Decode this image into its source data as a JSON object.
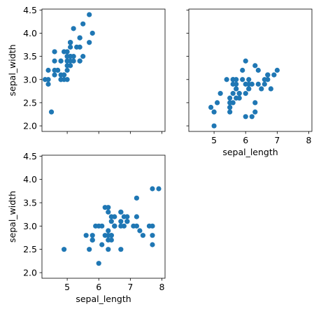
{
  "chart_data": [
    {
      "type": "scatter",
      "panel": "top-left",
      "xlabel": "",
      "ylabel": "sepal_width",
      "xlim": [
        4.2,
        8.1
      ],
      "ylim": [
        1.88,
        4.52
      ],
      "xticks": [
        5,
        6,
        7,
        8
      ],
      "yticks": [
        2.0,
        2.5,
        3.0,
        3.5,
        4.0,
        4.5
      ],
      "show_xtick_labels": false,
      "show_ytick_labels": true,
      "color": "#1f77b4",
      "points": [
        [
          5.1,
          3.5
        ],
        [
          4.9,
          3.0
        ],
        [
          4.7,
          3.2
        ],
        [
          4.6,
          3.1
        ],
        [
          5.0,
          3.6
        ],
        [
          5.4,
          3.9
        ],
        [
          4.6,
          3.4
        ],
        [
          5.0,
          3.4
        ],
        [
          4.4,
          2.9
        ],
        [
          4.9,
          3.1
        ],
        [
          5.4,
          3.7
        ],
        [
          4.8,
          3.4
        ],
        [
          4.8,
          3.0
        ],
        [
          4.3,
          3.0
        ],
        [
          5.8,
          4.0
        ],
        [
          5.7,
          4.4
        ],
        [
          5.4,
          3.9
        ],
        [
          5.1,
          3.5
        ],
        [
          5.7,
          3.8
        ],
        [
          5.1,
          3.8
        ],
        [
          5.4,
          3.4
        ],
        [
          5.1,
          3.7
        ],
        [
          4.6,
          3.6
        ],
        [
          5.1,
          3.3
        ],
        [
          4.8,
          3.4
        ],
        [
          5.0,
          3.0
        ],
        [
          5.0,
          3.4
        ],
        [
          5.2,
          3.5
        ],
        [
          5.2,
          3.4
        ],
        [
          4.7,
          3.2
        ],
        [
          4.8,
          3.1
        ],
        [
          5.4,
          3.4
        ],
        [
          5.2,
          4.1
        ],
        [
          5.5,
          4.2
        ],
        [
          4.9,
          3.1
        ],
        [
          5.0,
          3.2
        ],
        [
          5.5,
          3.5
        ],
        [
          4.9,
          3.6
        ],
        [
          4.4,
          3.0
        ],
        [
          5.1,
          3.4
        ],
        [
          5.0,
          3.5
        ],
        [
          4.5,
          2.3
        ],
        [
          4.4,
          3.2
        ],
        [
          5.0,
          3.5
        ],
        [
          5.1,
          3.8
        ],
        [
          4.8,
          3.0
        ],
        [
          5.1,
          3.8
        ],
        [
          4.6,
          3.2
        ],
        [
          5.3,
          3.7
        ],
        [
          5.0,
          3.3
        ]
      ]
    },
    {
      "type": "scatter",
      "panel": "top-right",
      "xlabel": "sepal_length",
      "ylabel": "",
      "xlim": [
        4.2,
        8.1
      ],
      "ylim": [
        1.88,
        4.52
      ],
      "xticks": [
        5,
        6,
        7,
        8
      ],
      "yticks": [
        2.0,
        2.5,
        3.0,
        3.5,
        4.0,
        4.5
      ],
      "show_xtick_labels": true,
      "show_ytick_labels": false,
      "color": "#1f77b4",
      "points": [
        [
          7.0,
          3.2
        ],
        [
          6.4,
          3.2
        ],
        [
          6.9,
          3.1
        ],
        [
          5.5,
          2.3
        ],
        [
          6.5,
          2.8
        ],
        [
          5.7,
          2.8
        ],
        [
          6.3,
          3.3
        ],
        [
          4.9,
          2.4
        ],
        [
          6.6,
          2.9
        ],
        [
          5.2,
          2.7
        ],
        [
          5.0,
          2.0
        ],
        [
          5.9,
          3.0
        ],
        [
          6.0,
          2.2
        ],
        [
          6.1,
          2.9
        ],
        [
          5.6,
          2.9
        ],
        [
          6.7,
          3.1
        ],
        [
          5.6,
          3.0
        ],
        [
          5.8,
          2.7
        ],
        [
          6.2,
          2.2
        ],
        [
          5.6,
          2.5
        ],
        [
          5.9,
          3.2
        ],
        [
          6.1,
          2.8
        ],
        [
          6.3,
          2.5
        ],
        [
          6.1,
          2.8
        ],
        [
          6.4,
          2.9
        ],
        [
          6.6,
          3.0
        ],
        [
          6.8,
          2.8
        ],
        [
          6.7,
          3.0
        ],
        [
          6.0,
          2.9
        ],
        [
          5.7,
          2.6
        ],
        [
          5.5,
          2.4
        ],
        [
          5.5,
          2.4
        ],
        [
          5.8,
          2.7
        ],
        [
          6.0,
          2.7
        ],
        [
          5.4,
          3.0
        ],
        [
          6.0,
          3.4
        ],
        [
          6.7,
          3.1
        ],
        [
          6.3,
          2.3
        ],
        [
          5.6,
          3.0
        ],
        [
          5.5,
          2.5
        ],
        [
          5.5,
          2.6
        ],
        [
          6.1,
          3.0
        ],
        [
          5.8,
          2.6
        ],
        [
          5.0,
          2.3
        ],
        [
          5.6,
          2.7
        ],
        [
          5.7,
          3.0
        ],
        [
          5.7,
          2.9
        ],
        [
          6.2,
          2.9
        ],
        [
          5.1,
          2.5
        ],
        [
          5.7,
          2.8
        ]
      ]
    },
    {
      "type": "scatter",
      "panel": "bottom-left",
      "xlabel": "sepal_length",
      "ylabel": "sepal_width",
      "xlim": [
        4.2,
        8.1
      ],
      "ylim": [
        1.88,
        4.52
      ],
      "xticks": [
        5,
        6,
        7,
        8
      ],
      "yticks": [
        2.0,
        2.5,
        3.0,
        3.5,
        4.0,
        4.5
      ],
      "show_xtick_labels": true,
      "show_ytick_labels": true,
      "color": "#1f77b4",
      "points": [
        [
          6.3,
          3.3
        ],
        [
          5.8,
          2.7
        ],
        [
          7.1,
          3.0
        ],
        [
          6.3,
          2.9
        ],
        [
          6.5,
          3.0
        ],
        [
          7.6,
          3.0
        ],
        [
          4.9,
          2.5
        ],
        [
          7.3,
          2.9
        ],
        [
          6.7,
          2.5
        ],
        [
          7.2,
          3.6
        ],
        [
          6.5,
          3.2
        ],
        [
          6.4,
          2.7
        ],
        [
          6.8,
          3.0
        ],
        [
          5.7,
          2.5
        ],
        [
          5.8,
          2.8
        ],
        [
          6.4,
          3.2
        ],
        [
          6.5,
          3.0
        ],
        [
          7.7,
          3.8
        ],
        [
          7.7,
          2.6
        ],
        [
          6.0,
          2.2
        ],
        [
          6.9,
          3.2
        ],
        [
          5.6,
          2.8
        ],
        [
          7.7,
          2.8
        ],
        [
          6.3,
          2.7
        ],
        [
          6.7,
          3.3
        ],
        [
          7.2,
          3.2
        ],
        [
          6.2,
          2.8
        ],
        [
          6.1,
          3.0
        ],
        [
          6.4,
          2.8
        ],
        [
          7.2,
          3.0
        ],
        [
          7.4,
          2.8
        ],
        [
          7.9,
          3.8
        ],
        [
          6.4,
          2.8
        ],
        [
          6.3,
          2.8
        ],
        [
          6.1,
          2.6
        ],
        [
          7.7,
          3.0
        ],
        [
          6.3,
          3.4
        ],
        [
          6.4,
          3.1
        ],
        [
          6.0,
          3.0
        ],
        [
          6.9,
          3.1
        ],
        [
          6.7,
          3.1
        ],
        [
          6.9,
          3.1
        ],
        [
          5.8,
          2.7
        ],
        [
          6.8,
          3.2
        ],
        [
          6.7,
          3.3
        ],
        [
          6.7,
          3.0
        ],
        [
          6.3,
          2.5
        ],
        [
          6.5,
          3.0
        ],
        [
          6.2,
          3.4
        ],
        [
          5.9,
          3.0
        ]
      ]
    }
  ]
}
